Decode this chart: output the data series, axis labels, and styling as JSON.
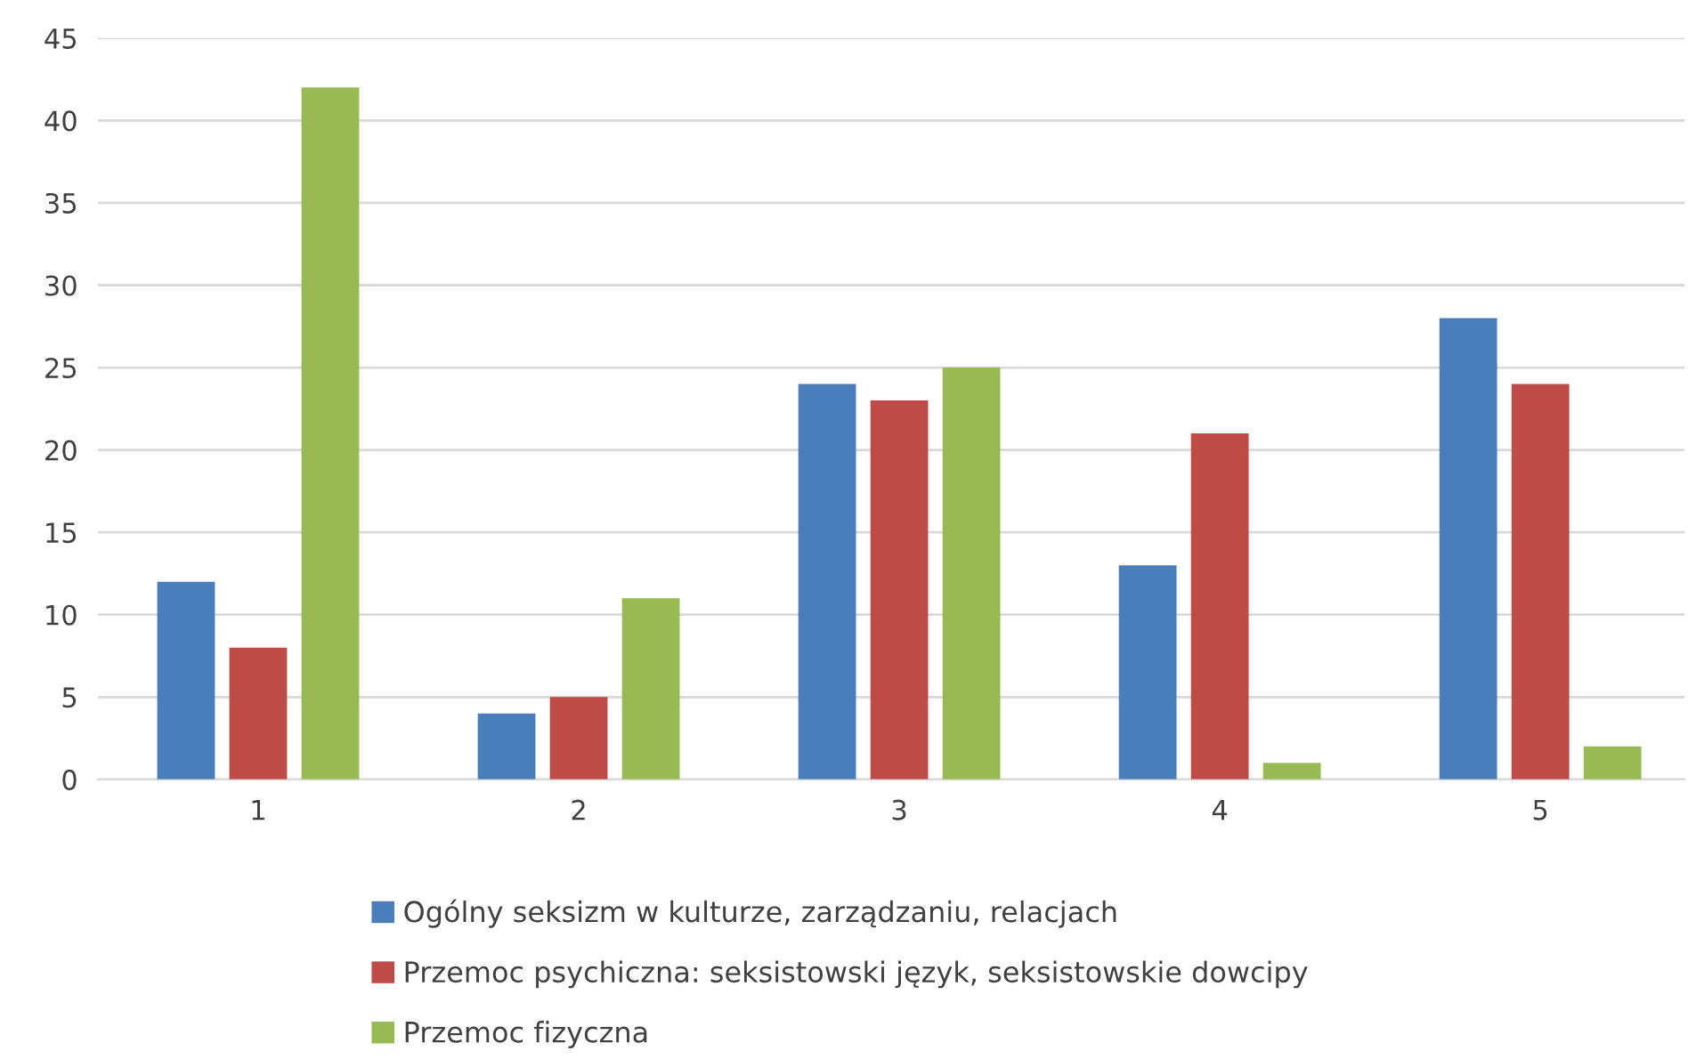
{
  "chart_data": {
    "type": "bar",
    "categories": [
      "1",
      "2",
      "3",
      "4",
      "5"
    ],
    "series": [
      {
        "name": "Ogólny seksizm w kulturze, zarządzaniu, relacjach",
        "color": "#4a7ebb",
        "values": [
          12,
          4,
          24,
          13,
          28
        ]
      },
      {
        "name": "Przemoc psychiczna: seksistowski język, seksistowskie dowcipy",
        "color": "#be4b48",
        "values": [
          8,
          5,
          23,
          21,
          24
        ]
      },
      {
        "name": "Przemoc fizyczna",
        "color": "#98b954",
        "values": [
          42,
          11,
          25,
          1,
          2
        ]
      }
    ],
    "ylim": [
      0,
      45
    ],
    "yticks": [
      0,
      5,
      10,
      15,
      20,
      25,
      30,
      35,
      40,
      45
    ],
    "grid": "y",
    "legend": "bottom"
  }
}
